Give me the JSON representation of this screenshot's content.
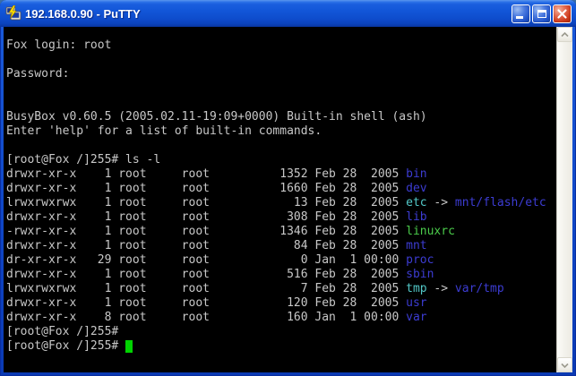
{
  "window": {
    "title": "192.168.0.90 - PuTTY",
    "controls": {
      "minimize": "minimize-button",
      "maximize": "maximize-button",
      "close": "close-button"
    }
  },
  "terminal": {
    "boot_lines": [
      "Fox login: root",
      "",
      "Password:",
      "",
      "",
      "BusyBox v0.60.5 (2005.02.11-19:09+0000) Built-in shell (ash)",
      "Enter 'help' for a list of built-in commands.",
      ""
    ],
    "prompt": "[root@Fox /]255#",
    "command": "ls -l",
    "listing": [
      {
        "perms": "drwxr-xr-x",
        "links": 1,
        "owner": "root",
        "group": "root",
        "size": 1352,
        "date": "Feb 28  2005",
        "name": "bin",
        "kind": "dir"
      },
      {
        "perms": "drwxr-xr-x",
        "links": 1,
        "owner": "root",
        "group": "root",
        "size": 1660,
        "date": "Feb 28  2005",
        "name": "dev",
        "kind": "dir"
      },
      {
        "perms": "lrwxrwxrwx",
        "links": 1,
        "owner": "root",
        "group": "root",
        "size": 13,
        "date": "Feb 28  2005",
        "name": "etc",
        "kind": "symlink",
        "target": "mnt/flash/etc"
      },
      {
        "perms": "drwxr-xr-x",
        "links": 1,
        "owner": "root",
        "group": "root",
        "size": 308,
        "date": "Feb 28  2005",
        "name": "lib",
        "kind": "dir"
      },
      {
        "perms": "-rwxr-xr-x",
        "links": 1,
        "owner": "root",
        "group": "root",
        "size": 1346,
        "date": "Feb 28  2005",
        "name": "linuxrc",
        "kind": "exec"
      },
      {
        "perms": "drwxr-xr-x",
        "links": 1,
        "owner": "root",
        "group": "root",
        "size": 84,
        "date": "Feb 28  2005",
        "name": "mnt",
        "kind": "dir"
      },
      {
        "perms": "dr-xr-xr-x",
        "links": 29,
        "owner": "root",
        "group": "root",
        "size": 0,
        "date": "Jan  1 00:00",
        "name": "proc",
        "kind": "dir"
      },
      {
        "perms": "drwxr-xr-x",
        "links": 1,
        "owner": "root",
        "group": "root",
        "size": 516,
        "date": "Feb 28  2005",
        "name": "sbin",
        "kind": "dir"
      },
      {
        "perms": "lrwxrwxrwx",
        "links": 1,
        "owner": "root",
        "group": "root",
        "size": 7,
        "date": "Feb 28  2005",
        "name": "tmp",
        "kind": "symlink",
        "target": "var/tmp"
      },
      {
        "perms": "drwxr-xr-x",
        "links": 1,
        "owner": "root",
        "group": "root",
        "size": 120,
        "date": "Feb 28  2005",
        "name": "usr",
        "kind": "dir"
      },
      {
        "perms": "drwxr-xr-x",
        "links": 8,
        "owner": "root",
        "group": "root",
        "size": 160,
        "date": "Jan  1 00:00",
        "name": "var",
        "kind": "dir"
      }
    ],
    "final_prompt_lines": [
      "[root@Fox /]255#",
      "[root@Fox /]255#"
    ],
    "colors": {
      "foreground": "#c8c8c8",
      "background": "#000000",
      "dir": "#3c3cd2",
      "symlink": "#52c8c8",
      "exec": "#4bcc4b",
      "link_target": "#3c3cd2",
      "cursor": "#00d300"
    }
  }
}
